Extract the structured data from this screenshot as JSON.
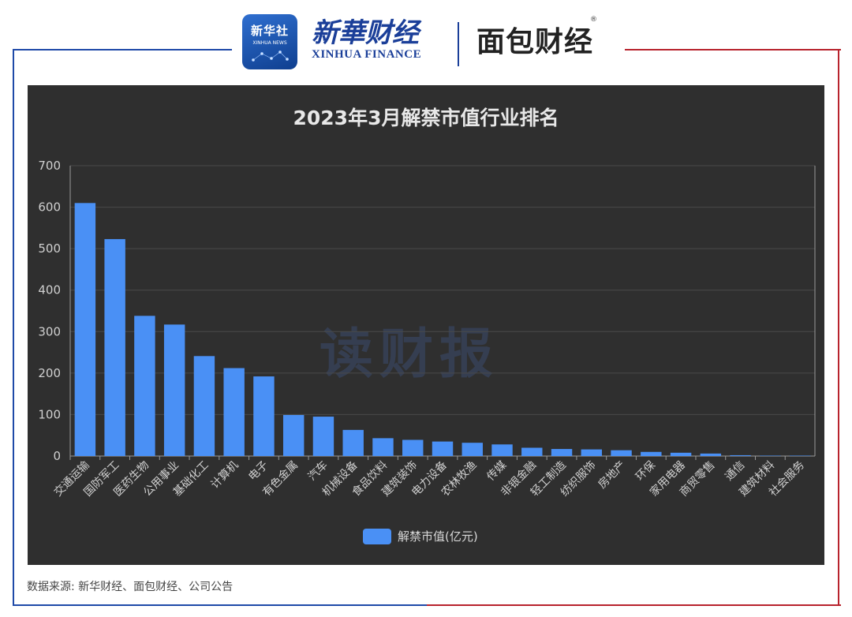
{
  "logos": {
    "xinhua_news_cn": "新华社",
    "xinhua_news_en": "XINHUA NEWS",
    "xinhua_finance_cn": "新華财经",
    "xinhua_finance_en": "XINHUA FINANCE",
    "mianbao_caijing": "面包财经"
  },
  "watermark": "读财报",
  "source": "数据来源: 新华财经、面包财经、公司公告",
  "colors": {
    "bar": "#4a90f5",
    "panel_bg": "#2f2f2f",
    "grid": "#4a4a4a",
    "frame_left": "#1f4aa8",
    "frame_right": "#b8232d"
  },
  "chart_data": {
    "type": "bar",
    "title": "2023年3月解禁市值行业排名",
    "categories": [
      "交通运输",
      "国防军工",
      "医药生物",
      "公用事业",
      "基础化工",
      "计算机",
      "电子",
      "有色金属",
      "汽车",
      "机械设备",
      "食品饮料",
      "建筑装饰",
      "电力设备",
      "农林牧渔",
      "传媒",
      "非银金融",
      "轻工制造",
      "纺织服饰",
      "房地产",
      "环保",
      "家用电器",
      "商贸零售",
      "通信",
      "建筑材料",
      "社会服务"
    ],
    "series": [
      {
        "name": "解禁市值(亿元)",
        "values": [
          610,
          523,
          338,
          317,
          241,
          212,
          192,
          99,
          95,
          63,
          43,
          39,
          35,
          32,
          28,
          20,
          17,
          16,
          14,
          10,
          8,
          6,
          2,
          1,
          1
        ]
      }
    ],
    "yticks": [
      0,
      100,
      200,
      300,
      400,
      500,
      600,
      700
    ],
    "ylim": [
      0,
      700
    ],
    "legend_position": "bottom-center",
    "grid": true
  }
}
